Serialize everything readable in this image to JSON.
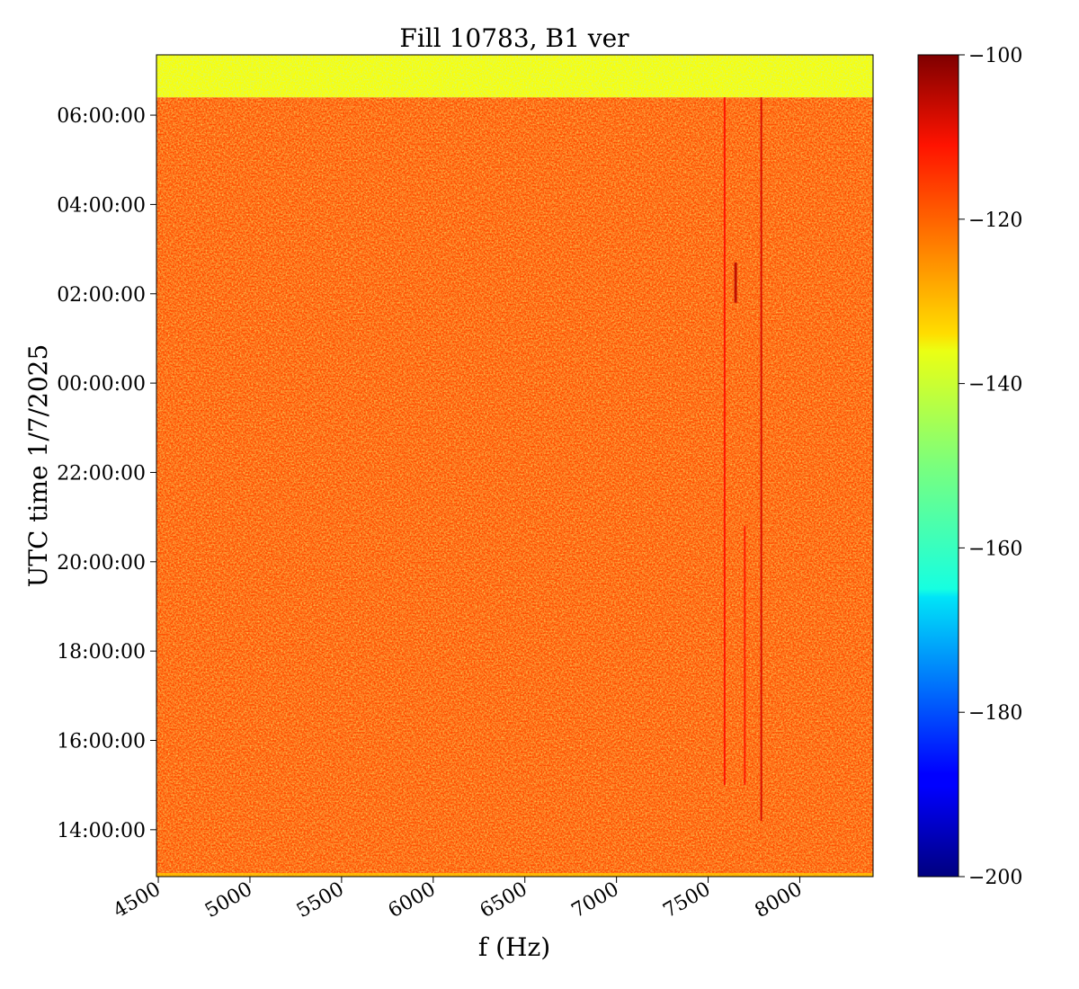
{
  "chart_data": {
    "type": "heatmap",
    "title": "Fill 10783, B1 ver",
    "xlabel": "f (Hz)",
    "ylabel": "UTC time 1/7/2025",
    "xlim": [
      4490,
      8400
    ],
    "xticks": [
      4500,
      5000,
      5500,
      6000,
      6500,
      7000,
      7500,
      8000
    ],
    "xtick_labels": [
      "4500",
      "5000",
      "5500",
      "6000",
      "6500",
      "7000",
      "7500",
      "8000"
    ],
    "ylim_hours": [
      12.95,
      31.35
    ],
    "yticks_hours": [
      14,
      16,
      18,
      20,
      22,
      24,
      26,
      28,
      30
    ],
    "ytick_labels": [
      "14:00:00",
      "16:00:00",
      "18:00:00",
      "20:00:00",
      "22:00:00",
      "00:00:00",
      "02:00:00",
      "04:00:00",
      "06:00:00"
    ],
    "colormap": "jet",
    "colorbar": {
      "range": [
        -200,
        -100
      ],
      "ticks": [
        -100,
        -120,
        -140,
        -160,
        -180,
        -200
      ],
      "tick_labels": [
        "−100",
        "−120",
        "−140",
        "−160",
        "−180",
        "−200"
      ]
    },
    "regions": [
      {
        "time_range_hours": [
          12.95,
          30.4
        ],
        "typical_value": -120,
        "description": "background noise level"
      },
      {
        "time_range_hours": [
          30.4,
          31.35
        ],
        "typical_value": -138,
        "description": "band after end of data"
      }
    ],
    "lines": [
      {
        "freq_hz": 7790,
        "time_range_hours": [
          14.2,
          30.4
        ],
        "value": -108
      },
      {
        "freq_hz": 7650,
        "time_range_hours": [
          25.8,
          26.7
        ],
        "value": -105
      },
      {
        "freq_hz": 7590,
        "time_range_hours": [
          15.0,
          30.4
        ],
        "value": -113
      },
      {
        "freq_hz": 7700,
        "time_range_hours": [
          15.0,
          20.8
        ],
        "value": -114
      }
    ]
  }
}
